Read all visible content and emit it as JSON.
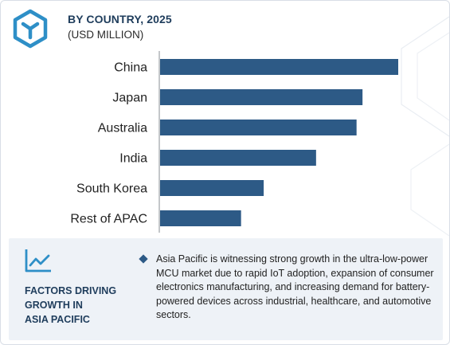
{
  "header": {
    "title": "BY COUNTRY, 2025",
    "subtitle": "(USD MILLION)",
    "logo_icon": "cube-icon",
    "accent_color": "#2e8fc7"
  },
  "chart_data": {
    "type": "bar",
    "orientation": "horizontal",
    "categories": [
      "China",
      "Japan",
      "Australia",
      "India",
      "South Korea",
      "Rest of APAC"
    ],
    "values": [
      100,
      85,
      82.5,
      65.5,
      43.5,
      34
    ],
    "xlim": [
      0,
      100
    ],
    "bar_color": "#2d5a86",
    "grid": false,
    "legend": "none",
    "value_labels_shown": false
  },
  "factors": {
    "icon": "trend-line-icon",
    "title_lines": [
      "FACTORS DRIVING",
      "GROWTH IN",
      "ASIA PACIFIC"
    ],
    "text": "Asia Pacific is witnessing strong growth in the ultra-low-power MCU market due to rapid IoT adoption, expansion of consumer electronics manufacturing, and increasing demand for battery-powered devices across industrial, healthcare, and automotive sectors.",
    "bullet_icon": "diamond-bullet-icon",
    "panel_color": "#eef2f7"
  }
}
